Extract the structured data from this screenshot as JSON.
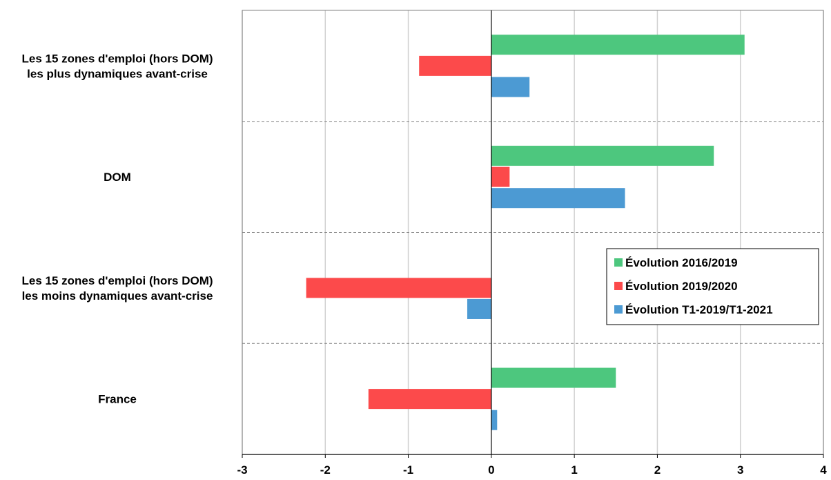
{
  "chart_data": {
    "type": "bar",
    "orientation": "horizontal",
    "categories": [
      [
        "Les 15 zones d'emploi (hors DOM)",
        "les plus dynamiques avant-crise"
      ],
      [
        "DOM"
      ],
      [
        "Les 15 zones d'emploi (hors DOM)",
        "les moins dynamiques avant-crise"
      ],
      [
        "France"
      ]
    ],
    "series": [
      {
        "name": "Évolution 2016/2019",
        "color": "#4dc77e",
        "values": [
          3.05,
          2.68,
          0,
          1.5
        ]
      },
      {
        "name": "Évolution 2019/2020",
        "color": "#fc4a4b",
        "values": [
          -0.87,
          0.22,
          -2.23,
          -1.48
        ]
      },
      {
        "name": "Évolution T1-2019/T1-2021",
        "color": "#4c9ad3",
        "values": [
          0.46,
          1.61,
          -0.29,
          0.07
        ]
      }
    ],
    "xlim": [
      -3,
      4
    ],
    "xticks": [
      -3,
      -2,
      -1,
      0,
      1,
      2,
      3,
      4
    ],
    "grid": true,
    "legend_position": "right"
  }
}
